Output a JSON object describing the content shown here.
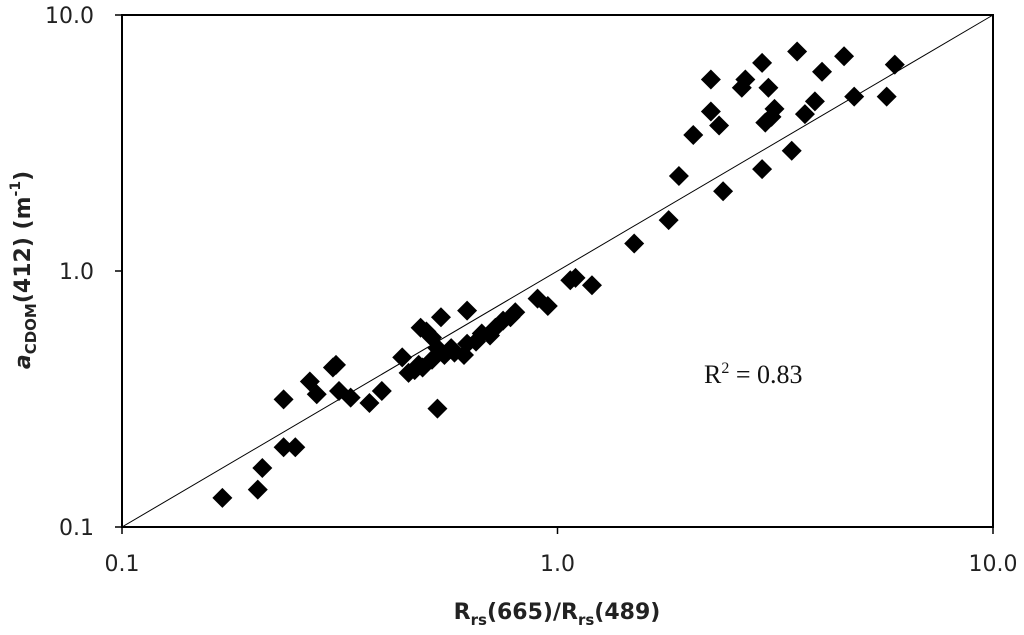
{
  "chart_data": {
    "type": "scatter",
    "xscale": "log",
    "yscale": "log",
    "xlim": [
      0.1,
      10.0
    ],
    "ylim": [
      0.1,
      10.0
    ],
    "xticks": [
      "0.1",
      "1.0",
      "10.0"
    ],
    "yticks": [
      "0.1",
      "1.0",
      "10.0"
    ],
    "xlabel": {
      "main": "R",
      "sub1": "rs",
      "mid": "(665)/R",
      "sub2": "rs",
      "end": "(489)"
    },
    "ylabel": {
      "main": "a",
      "sub": "CDOM",
      "mid": "(412) (m",
      "sup": "-1",
      "end": ")"
    },
    "annotation": {
      "prefix": "R",
      "sup": "2",
      "suffix": " = 0.83"
    },
    "colors": {
      "marker": "#000000",
      "line": "#000000",
      "frame": "#000000"
    },
    "marker": "diamond",
    "fit_line": {
      "x": [
        0.1,
        10.0
      ],
      "y": [
        0.1,
        10.0
      ]
    },
    "grid": false,
    "legend": "none",
    "points": [
      [
        0.17,
        0.13
      ],
      [
        0.205,
        0.14
      ],
      [
        0.21,
        0.17
      ],
      [
        0.235,
        0.205
      ],
      [
        0.25,
        0.205
      ],
      [
        0.235,
        0.315
      ],
      [
        0.27,
        0.37
      ],
      [
        0.28,
        0.33
      ],
      [
        0.305,
        0.42
      ],
      [
        0.31,
        0.43
      ],
      [
        0.315,
        0.34
      ],
      [
        0.335,
        0.32
      ],
      [
        0.37,
        0.305
      ],
      [
        0.395,
        0.34
      ],
      [
        0.44,
        0.46
      ],
      [
        0.455,
        0.4
      ],
      [
        0.47,
        0.41
      ],
      [
        0.48,
        0.43
      ],
      [
        0.49,
        0.42
      ],
      [
        0.485,
        0.6
      ],
      [
        0.5,
        0.58
      ],
      [
        0.515,
        0.55
      ],
      [
        0.515,
        0.45
      ],
      [
        0.53,
        0.5
      ],
      [
        0.53,
        0.29
      ],
      [
        0.54,
        0.66
      ],
      [
        0.55,
        0.47
      ],
      [
        0.57,
        0.5
      ],
      [
        0.58,
        0.48
      ],
      [
        0.61,
        0.47
      ],
      [
        0.62,
        0.52
      ],
      [
        0.62,
        0.7
      ],
      [
        0.65,
        0.53
      ],
      [
        0.67,
        0.57
      ],
      [
        0.7,
        0.56
      ],
      [
        0.72,
        0.6
      ],
      [
        0.75,
        0.64
      ],
      [
        0.78,
        0.66
      ],
      [
        0.8,
        0.69
      ],
      [
        0.9,
        0.78
      ],
      [
        0.95,
        0.73
      ],
      [
        1.07,
        0.92
      ],
      [
        1.1,
        0.94
      ],
      [
        1.2,
        0.88
      ],
      [
        1.5,
        1.28
      ],
      [
        1.8,
        1.58
      ],
      [
        1.9,
        2.35
      ],
      [
        2.05,
        3.4
      ],
      [
        2.25,
        4.2
      ],
      [
        2.25,
        5.6
      ],
      [
        2.35,
        3.7
      ],
      [
        2.4,
        2.05
      ],
      [
        2.65,
        5.2
      ],
      [
        2.7,
        5.6
      ],
      [
        2.95,
        6.5
      ],
      [
        2.95,
        2.5
      ],
      [
        3.0,
        3.8
      ],
      [
        3.05,
        5.2
      ],
      [
        3.1,
        4.0
      ],
      [
        3.15,
        4.3
      ],
      [
        3.45,
        2.95
      ],
      [
        3.55,
        7.2
      ],
      [
        3.7,
        4.1
      ],
      [
        3.9,
        4.6
      ],
      [
        4.05,
        6.0
      ],
      [
        4.55,
        6.9
      ],
      [
        4.8,
        4.8
      ],
      [
        5.7,
        4.8
      ],
      [
        5.95,
        6.4
      ]
    ]
  }
}
